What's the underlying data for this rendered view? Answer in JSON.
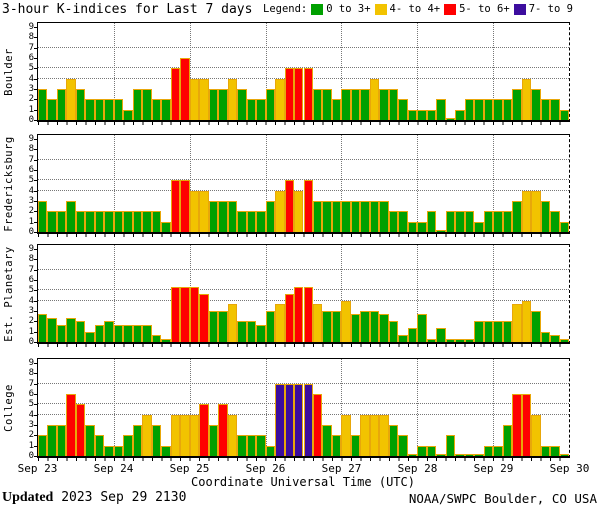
{
  "title": "3-hour K-indices for Last 7 days",
  "legend": {
    "label": "Legend:",
    "items": [
      {
        "label": "0 to 3+",
        "color": "#00a000"
      },
      {
        "label": "4- to 4+",
        "color": "#f2c300"
      },
      {
        "label": "5- to 6+",
        "color": "#ff0000"
      },
      {
        "label": "7- to 9",
        "color": "#3c0d9e"
      }
    ]
  },
  "footer": {
    "updated_label": "Updated",
    "updated_value": "2023 Sep 29 2130",
    "source": "NOAA/SWPC Boulder, CO USA"
  },
  "chart_data": {
    "type": "bar",
    "title": "3-hour K-indices for Last 7 days",
    "xlabel": "Coordinate Universal Time (UTC)",
    "x_tick_labels": [
      "Sep 23",
      "Sep 24",
      "Sep 25",
      "Sep 26",
      "Sep 27",
      "Sep 28",
      "Sep 29",
      "Sep 30"
    ],
    "bars_per_day": 8,
    "bar_interval_hours": 3,
    "ylim": [
      0,
      9
    ],
    "y_ticks": [
      0,
      1,
      2,
      3,
      4,
      5,
      6,
      7,
      8,
      9
    ],
    "h_gridlines_at": [
      4,
      5,
      7
    ],
    "grid": "dotted",
    "legend_position": "top-right",
    "color_rules": [
      {
        "label": "0 to 3+",
        "min": 0,
        "color": "#00a000"
      },
      {
        "label": "4- to 4+",
        "min": 3.67,
        "color": "#f2c300"
      },
      {
        "label": "5- to 6+",
        "min": 4.67,
        "color": "#ff0000"
      },
      {
        "label": "7- to 9",
        "min": 6.67,
        "color": "#3c0d9e"
      }
    ],
    "series": [
      {
        "name": "Boulder",
        "values": [
          3,
          2,
          3,
          4,
          3,
          2,
          2,
          2,
          2,
          1,
          3,
          3,
          2,
          2,
          5,
          6,
          4,
          4,
          3,
          3,
          4,
          3,
          2,
          2,
          3,
          4,
          5,
          5,
          5,
          3,
          3,
          2,
          3,
          3,
          3,
          4,
          3,
          3,
          2,
          1,
          1,
          1,
          2,
          0,
          1,
          2,
          2,
          2,
          2,
          2,
          3,
          4,
          3,
          2,
          2,
          1
        ]
      },
      {
        "name": "Fredericksburg",
        "values": [
          3,
          2,
          2,
          3,
          2,
          2,
          2,
          2,
          2,
          2,
          2,
          2,
          2,
          1,
          5,
          5,
          4,
          4,
          3,
          3,
          3,
          2,
          2,
          2,
          3,
          4,
          5,
          4,
          5,
          3,
          3,
          3,
          3,
          3,
          3,
          3,
          3,
          2,
          2,
          1,
          1,
          2,
          0,
          2,
          2,
          2,
          1,
          2,
          2,
          2,
          3,
          4,
          4,
          3,
          2,
          1
        ]
      },
      {
        "name": "Est. Planetary",
        "values": [
          2.67,
          2.33,
          1.67,
          2.33,
          2,
          1,
          1.67,
          2,
          1.67,
          1.67,
          1.67,
          1.67,
          0.67,
          0.33,
          5.33,
          5.33,
          5.33,
          4.67,
          3,
          3,
          3.67,
          2,
          2,
          1.67,
          3,
          3.67,
          4.67,
          5.33,
          5.33,
          3.67,
          3,
          3,
          4,
          2.67,
          3,
          3,
          2.67,
          2,
          0.67,
          1.33,
          2.67,
          0.33,
          1.33,
          0.33,
          0.33,
          0.33,
          2,
          2,
          2,
          2,
          3.67,
          4,
          3,
          1,
          0.67,
          0.33
        ]
      },
      {
        "name": "College",
        "values": [
          2,
          3,
          3,
          6,
          5,
          3,
          2,
          1,
          1,
          2,
          3,
          4,
          3,
          1,
          4,
          4,
          4,
          5,
          3,
          5,
          4,
          2,
          2,
          2,
          1,
          7,
          7,
          7,
          7,
          6,
          3,
          2,
          4,
          2,
          4,
          4,
          4,
          3,
          2,
          0,
          1,
          1,
          0,
          2,
          0,
          0,
          0,
          1,
          1,
          3,
          6,
          6,
          4,
          1,
          1,
          0
        ]
      }
    ]
  }
}
